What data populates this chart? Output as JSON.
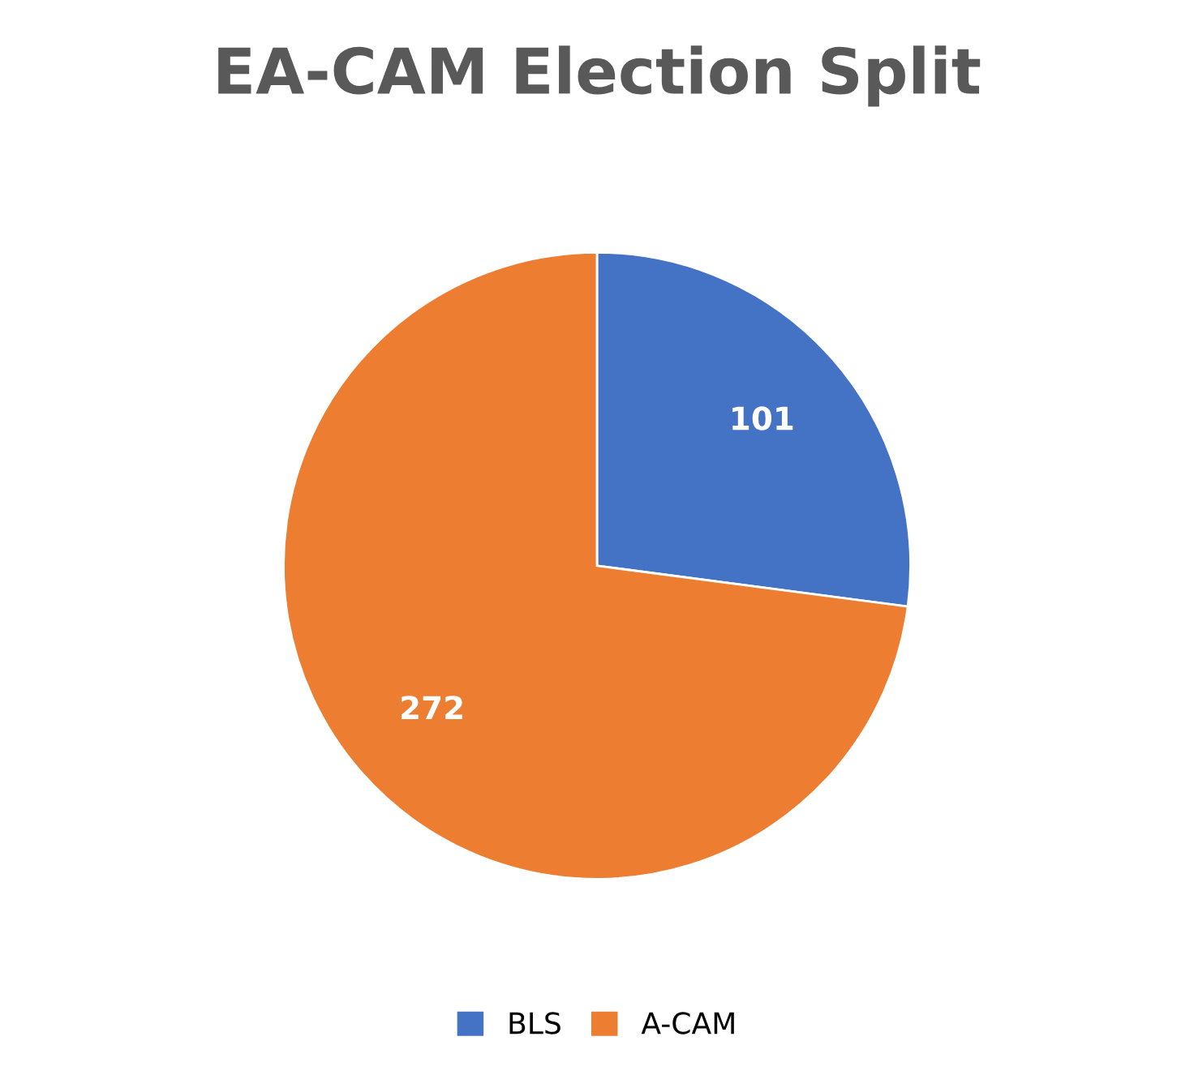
{
  "chart_data": {
    "type": "pie",
    "title": "EA-CAM Election Split",
    "categories": [
      "BLS",
      "A-CAM"
    ],
    "values": [
      101,
      272
    ],
    "colors": [
      "#4472c4",
      "#ed7d31"
    ],
    "data_labels": true,
    "legend": "bottom"
  }
}
